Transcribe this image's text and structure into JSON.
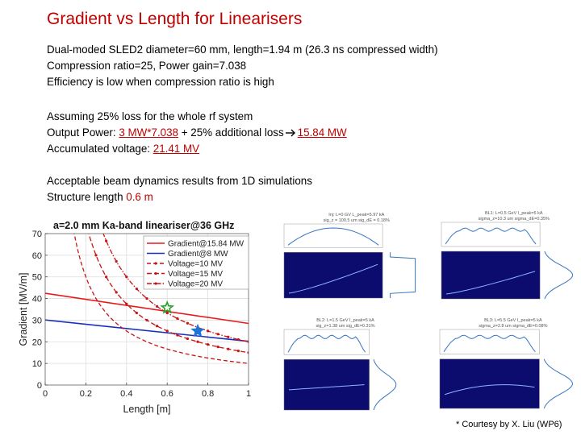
{
  "slide": {
    "title": "Gradient vs Length for Linearisers",
    "block1": [
      "Dual-moded SLED2 diameter=60 mm, length=1.94 m (26.3 ns compressed width)",
      "Compression ratio=25, Power gain=7.038",
      "Efficiency is low when compression ratio is high"
    ],
    "block2": {
      "line1": "Assuming 25% loss for the whole rf system",
      "line2_prefix": "Output Power: ",
      "line2_power": "3 MW*7.038",
      "line2_mid": " + 25% additional loss",
      "line2_result": "15.84 MW",
      "line3_prefix": "Accumulated voltage: ",
      "line3_value": "21.41 MV"
    },
    "block3": {
      "line1": "Acceptable beam dynamics results from 1D simulations",
      "line2_prefix": "Structure length ",
      "line2_value": "0.6 m"
    },
    "credit": "* Courtesy by X. Liu (WP6)",
    "colors": {
      "title": "#c00000",
      "accent": "#c00000"
    }
  },
  "chart_data": {
    "type": "line",
    "title": "a=2.0 mm Ka-band lineariser@36 GHz",
    "xlabel": "Length [m]",
    "ylabel": "Gradient [MV/m]",
    "xlim": [
      0,
      1
    ],
    "ylim": [
      0,
      70
    ],
    "xticks": [
      "0",
      "0.2",
      "0.4",
      "0.6",
      "0.8",
      "1"
    ],
    "yticks": [
      "0",
      "10",
      "20",
      "30",
      "40",
      "50",
      "60",
      "70"
    ],
    "grid": true,
    "legend_position": "top-right",
    "series": [
      {
        "name": "Gradient@15.84 MW",
        "color": "#e8191b",
        "style": "solid",
        "kind": "linear",
        "x": [
          0,
          1
        ],
        "y": [
          42.4,
          28.5
        ]
      },
      {
        "name": "Gradient@8 MW",
        "color": "#1a2fbf",
        "style": "solid",
        "kind": "linear",
        "x": [
          0,
          1
        ],
        "y": [
          30.1,
          20.2
        ]
      },
      {
        "name": "Voltage=10 MV",
        "color": "#c81414",
        "style": "dashed",
        "kind": "voltage",
        "voltage": 10
      },
      {
        "name": "Voltage=15 MV",
        "color": "#c81414",
        "style": "dash-star",
        "kind": "voltage",
        "voltage": 15
      },
      {
        "name": "Voltage=20 MV",
        "color": "#c81414",
        "style": "dash-dot",
        "kind": "voltage",
        "voltage": 20
      }
    ],
    "markers": [
      {
        "x": 0.6,
        "y": 35.7,
        "color": "#22a022",
        "shape": "star"
      },
      {
        "x": 0.75,
        "y": 25,
        "color": "#1e73d6",
        "shape": "star"
      }
    ]
  },
  "simulations": [
    {
      "title": "Inj: L=0 GV L_peak=5.97 kA\nsig_z = 100.5 um sig_dE = 0.18%"
    },
    {
      "title": "BL1: L=0.5 GeV I_peak=5 kA\nsigma_z=10.3 um sigma_dE=0.35%"
    },
    {
      "title": "BL2: L=1.5 GeV I_peak=5 kA\nsig_z=1.38 um sig_dE=0.31%"
    },
    {
      "title": "BL3: L=5.5 GeV I_peak=5 kA\nsigma_z=2.8 um sigma_dE=0.08%"
    }
  ]
}
